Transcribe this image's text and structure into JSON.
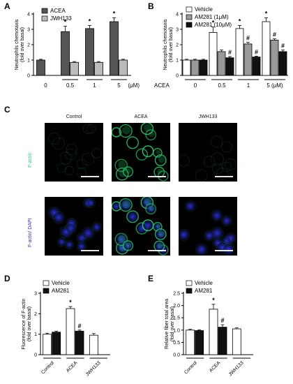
{
  "panel_labels": {
    "A": "A",
    "B": "B",
    "C": "C",
    "D": "D",
    "E": "E"
  },
  "colors": {
    "white_bar": "#ffffff",
    "dark_bar": "#555555",
    "light_bar": "#bbbbbb",
    "gray_bar": "#999999",
    "black_bar": "#111111",
    "green": "#1fd06a",
    "blue": "#2a2fd8",
    "scale_bar": "#ffffff"
  },
  "chart_data": [
    {
      "id": "A",
      "type": "bar",
      "ylabel": "Neutrophils chemotaxis\n(fold over basal)",
      "ylim": [
        0,
        4
      ],
      "yticks": [
        0,
        1,
        2,
        3,
        4
      ],
      "groups": [
        "0",
        "0.5",
        "1",
        "5"
      ],
      "unit_label": "(μM)",
      "legend": [
        "ACEA",
        "JWH133"
      ],
      "series": [
        {
          "name": "ACEA",
          "values": [
            1.0,
            2.85,
            3.05,
            3.5
          ],
          "err": [
            0.05,
            0.35,
            0.2,
            0.25
          ],
          "sig": [
            "",
            "*",
            "*",
            "*"
          ]
        },
        {
          "name": "JWH133",
          "values": [
            null,
            0.85,
            0.85,
            1.0
          ],
          "err": [
            0,
            0.05,
            0.05,
            0.05
          ],
          "sig": [
            "",
            "",
            "",
            ""
          ]
        }
      ]
    },
    {
      "id": "B",
      "type": "bar",
      "ylabel": "Neutrophils chemotaxis\n(fold over basal)",
      "ylim": [
        0,
        4
      ],
      "yticks": [
        0,
        1,
        2,
        3,
        4
      ],
      "xlabel": "ACEA",
      "groups": [
        "0",
        "0.5",
        "1",
        "5 (μM)"
      ],
      "legend": [
        "Vehicle",
        "AM281 (1μM)",
        "AM281 (10μM)"
      ],
      "series": [
        {
          "name": "Vehicle",
          "values": [
            1.0,
            2.8,
            3.05,
            3.5
          ],
          "err": [
            0.05,
            0.35,
            0.2,
            0.25
          ],
          "sig": [
            "",
            "*",
            "*",
            "*"
          ]
        },
        {
          "name": "AM281 (1μM)",
          "values": [
            1.0,
            1.55,
            2.05,
            2.3
          ],
          "err": [
            0.05,
            0.1,
            0.1,
            0.08
          ],
          "sig": [
            "",
            "",
            "#",
            "#"
          ]
        },
        {
          "name": "AM281 (10μM)",
          "values": [
            1.0,
            1.15,
            1.2,
            1.55
          ],
          "err": [
            0.05,
            0.08,
            0.05,
            0.1
          ],
          "sig": [
            "",
            "#",
            "#",
            "#"
          ]
        }
      ]
    },
    {
      "id": "D",
      "type": "bar",
      "ylabel": "Fluorescence of F-actin\n(fold over basal)",
      "ylim": [
        0,
        3
      ],
      "yticks": [
        0,
        1,
        2,
        3
      ],
      "groups": [
        "Control",
        "ACEA",
        "JWH133"
      ],
      "legend": [
        "Vehicle",
        "AM281"
      ],
      "series": [
        {
          "name": "Vehicle",
          "values": [
            1.0,
            2.25,
            0.95
          ],
          "err": [
            0.05,
            0.1,
            0.08
          ],
          "sig": [
            "",
            "*",
            ""
          ]
        },
        {
          "name": "AM281",
          "values": [
            1.1,
            1.15,
            null
          ],
          "err": [
            0.05,
            0.05,
            0
          ],
          "sig": [
            "",
            "#",
            ""
          ]
        }
      ]
    },
    {
      "id": "E",
      "type": "bar",
      "ylabel": "Relative fiber total area\n(fold over basal)",
      "ylim": [
        0,
        2.5
      ],
      "yticks": [
        0,
        0.5,
        1.0,
        1.5,
        2.0,
        2.5
      ],
      "groups": [
        "Control",
        "ACEA",
        "JWH133"
      ],
      "legend": [
        "Vehicle",
        "AM281"
      ],
      "series": [
        {
          "name": "Vehicle",
          "values": [
            1.0,
            1.85,
            1.05
          ],
          "err": [
            0.03,
            0.2,
            0.04
          ],
          "sig": [
            "",
            "*",
            ""
          ]
        },
        {
          "name": "AM281",
          "values": [
            0.98,
            1.12,
            null
          ],
          "err": [
            0.03,
            0.1,
            0
          ],
          "sig": [
            "",
            "#",
            ""
          ]
        }
      ]
    }
  ],
  "micro": {
    "col_titles": [
      "Control",
      "ACEA",
      "JWH133"
    ],
    "row_labels": [
      "F-actin",
      "F-actin/ DAPI"
    ]
  }
}
